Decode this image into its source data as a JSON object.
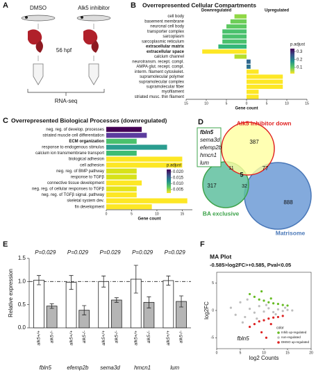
{
  "figure_a": {
    "label": "A",
    "groups": [
      "DMSO",
      "Alk5 inhibitor"
    ],
    "timepoint": "56 hpf",
    "method": "RNA-seq"
  },
  "venn_d": {
    "label": "D",
    "genes": [
      "fbln5",
      "sema3d",
      "efemp2b",
      "hmcn1",
      "lum"
    ],
    "sets": [
      "Alk5 inhibitor down",
      "BA exclusive",
      "Matrisome"
    ],
    "regions": {
      "inhibitor_only": 387,
      "ba_only": 317,
      "matrisome_only": 888,
      "inhibitor_ba": 11,
      "inhibitor_matrisome": 77,
      "ba_matrisome": 32,
      "all": 5
    }
  },
  "chart_data": [
    {
      "type": "hbar",
      "label": "B",
      "title": "Overrepresented Cellular Compartments",
      "annotations": [
        "Downregulated",
        "Upregulated"
      ],
      "categories": [
        "cell body",
        "basement membrane",
        "neuronal cell body",
        "transporter complex",
        "sarcoplasm",
        "sarcoplasmic reticulum",
        "extracellular matrix",
        "extracellular space",
        "calcium channel",
        "neurotransm. recept. compl.",
        "AMPA glut. recept. compl.",
        "interm. filament cytoskelet.",
        "supramolecular polymer",
        "supramolecular complex",
        "supramolecular fiber",
        "myofilament",
        "striated musc. thin filament"
      ],
      "emphasis": [
        false,
        false,
        false,
        false,
        false,
        false,
        true,
        true,
        false,
        false,
        false,
        false,
        false,
        false,
        false,
        false,
        false
      ],
      "values": [
        -3,
        -4,
        -5,
        -6,
        -6,
        -6,
        -7,
        -11,
        -3,
        1,
        1,
        3,
        9,
        9,
        9,
        3,
        3
      ],
      "colors": [
        "#8fd744",
        "#6ece58",
        "#5ec962",
        "#4ac16d",
        "#4ac16d",
        "#4ac16d",
        "#35b779",
        "#fde725",
        "#b5de2b",
        "#31688e",
        "#2c728e",
        "#fde725",
        "#fde725",
        "#fde725",
        "#fde725",
        "#fde725",
        "#fde725"
      ],
      "xlabel": "Gene count",
      "xlim": [
        -15,
        15
      ],
      "xticks": [
        {
          "value": -15,
          "label": "15"
        },
        {
          "value": -10,
          "label": "10"
        },
        {
          "value": -5,
          "label": "5"
        },
        0,
        5,
        10,
        15
      ],
      "colorbar": {
        "title": "p.adjust",
        "lim": [
          0.02,
          0.34
        ],
        "ticks": [
          0.3,
          0.2,
          0.1
        ],
        "colormap": [
          "#440154",
          "#3b528b",
          "#21918c",
          "#5ec962",
          "#fde725"
        ]
      }
    },
    {
      "type": "hbar",
      "label": "C",
      "title": "Overrepresented Biological Processes (downregulated)",
      "categories": [
        "neg. reg. of develop. processes",
        "striated muscle cell differentiation",
        "ECM organization",
        "response to endogenous stimulus",
        "calcium ion transmembrane transport",
        "biological adhesion",
        "cell adhesion",
        "neg. reg. of BMP pathway",
        "response to TGFβ",
        "connective tissue development",
        "neg. reg. of cellular responses to TGFβ",
        "neg. reg. of TGFβ signal. pathway",
        "skeletal system dev.",
        "fin development"
      ],
      "emphasis": [
        false,
        false,
        true,
        false,
        false,
        false,
        false,
        false,
        false,
        false,
        false,
        false,
        false,
        false
      ],
      "values": [
        7,
        8,
        6,
        12,
        6,
        15,
        15,
        6,
        6,
        7,
        6,
        6,
        16,
        9
      ],
      "colors": [
        "#440154",
        "#5c3c9e",
        "#4ac16d",
        "#2a9d8f",
        "#3fbc73",
        "#fde725",
        "#fde725",
        "#d8e219",
        "#d8e219",
        "#fde725",
        "#e5e419",
        "#fde725",
        "#fde725",
        "#fde725"
      ],
      "xlabel": "Gene count",
      "xlim": [
        0,
        17
      ],
      "xticks": [
        0,
        5,
        10,
        15
      ],
      "colorbar": {
        "title": "p.adjust",
        "lim": [
          0.002,
          0.022
        ],
        "ticks": [
          {
            "value": 0.02,
            "label": "0.020"
          },
          {
            "value": 0.015,
            "label": "0.015"
          },
          {
            "value": 0.01,
            "label": "0.010"
          },
          {
            "value": 0.005,
            "label": "0.005"
          }
        ],
        "colormap": [
          "#440154",
          "#3b528b",
          "#21918c",
          "#5ec962",
          "#fde725"
        ]
      }
    },
    {
      "type": "grouped_bar",
      "label": "E",
      "ylabel": "Relative expression",
      "categories": [
        "fbln5",
        "efemp2b",
        "sema3d",
        "hmcn1",
        "lum"
      ],
      "annotations": [
        "P=0.029",
        "P=0.029",
        "P=0.029",
        "P=0.029",
        "P=0.029"
      ],
      "series": [
        {
          "name": "alk5+/+",
          "color": "#ffffff",
          "values": [
            1.03,
            0.98,
            1.0,
            1.05,
            1.02
          ],
          "errors": [
            0.1,
            0.15,
            0.12,
            0.3,
            0.1
          ]
        },
        {
          "name": "alk5-/-",
          "color": "#b5b5b5",
          "values": [
            0.47,
            0.38,
            0.6,
            0.55,
            0.57
          ],
          "errors": [
            0.05,
            0.1,
            0.05,
            0.12,
            0.12
          ]
        }
      ],
      "reference_line": 1,
      "ylim": [
        0,
        1.5
      ],
      "yticks": [
        {
          "value": 0,
          "label": "0.0"
        },
        {
          "value": 0.5,
          "label": "0.5"
        },
        {
          "value": 1,
          "label": "1.0"
        },
        {
          "value": 1.5,
          "label": "1.5"
        }
      ]
    },
    {
      "type": "scatter",
      "label": "F",
      "title": "MA Plot",
      "subtitle": "-0.585>log2FC>+0.585, Pval<0.05",
      "xlabel": "log2 Counts",
      "ylabel": "log2FC",
      "annotations": [
        "fbln5"
      ],
      "legend_title": "color",
      "xlim": [
        0,
        20
      ],
      "ylim": [
        -7,
        7
      ],
      "xticks": [
        0,
        5,
        10,
        15,
        20
      ],
      "yticks": [
        -5,
        0,
        5
      ],
      "series": [
        {
          "name": "Inhib up-regulated",
          "color": "#66bb22",
          "x": [
            7,
            8,
            9,
            10,
            11,
            12,
            13,
            14,
            15,
            9.5,
            11.5
          ],
          "values": [
            3,
            2.5,
            2,
            1.8,
            1.5,
            1.3,
            1.2,
            1,
            0.9,
            3.5,
            2.2
          ]
        },
        {
          "name": "non-regulated",
          "color": "#bdbdbd",
          "x": [
            3,
            4,
            5,
            6,
            7,
            8,
            9,
            10,
            11,
            12,
            13,
            14,
            15,
            16,
            6.5,
            8.5,
            10.5,
            12.5,
            14.5,
            5.5
          ],
          "values": [
            0.5,
            -0.8,
            1.5,
            -1.2,
            0.3,
            -0.4,
            0.8,
            -0.2,
            0.4,
            -0.3,
            0.2,
            -0.1,
            0.1,
            0,
            2,
            -1.5,
            1,
            -0.7,
            0.5,
            -2.2
          ]
        },
        {
          "name": "DMSO up-regulated",
          "color": "#dd2222",
          "x": [
            7,
            8,
            9,
            10,
            11,
            12,
            13,
            14,
            9.5,
            11.5,
            10.5
          ],
          "values": [
            -3,
            -2.5,
            -2,
            -1.8,
            -1.5,
            -1.3,
            -1.2,
            -1,
            -4,
            -2.5,
            -5
          ]
        }
      ]
    }
  ]
}
